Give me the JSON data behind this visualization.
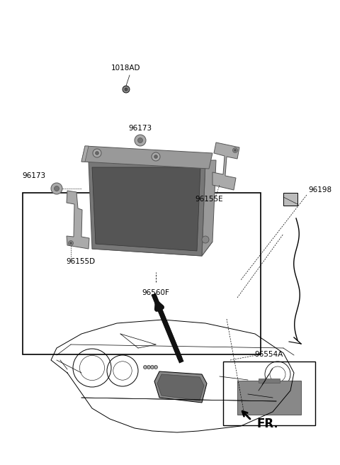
{
  "bg_color": "#ffffff",
  "labels": {
    "FR": "FR.",
    "part_96560F": "96560F",
    "part_96155D": "96155D",
    "part_96155E": "96155E",
    "part_96173_left": "96173",
    "part_96173_bottom": "96173",
    "part_96198": "96198",
    "part_96554A": "96554A",
    "part_1018AD": "1018AD"
  },
  "font_size": 7.5,
  "lc": "#000000",
  "dgc": "#555555",
  "mgc": "#888888",
  "lgc": "#bbbbbb"
}
